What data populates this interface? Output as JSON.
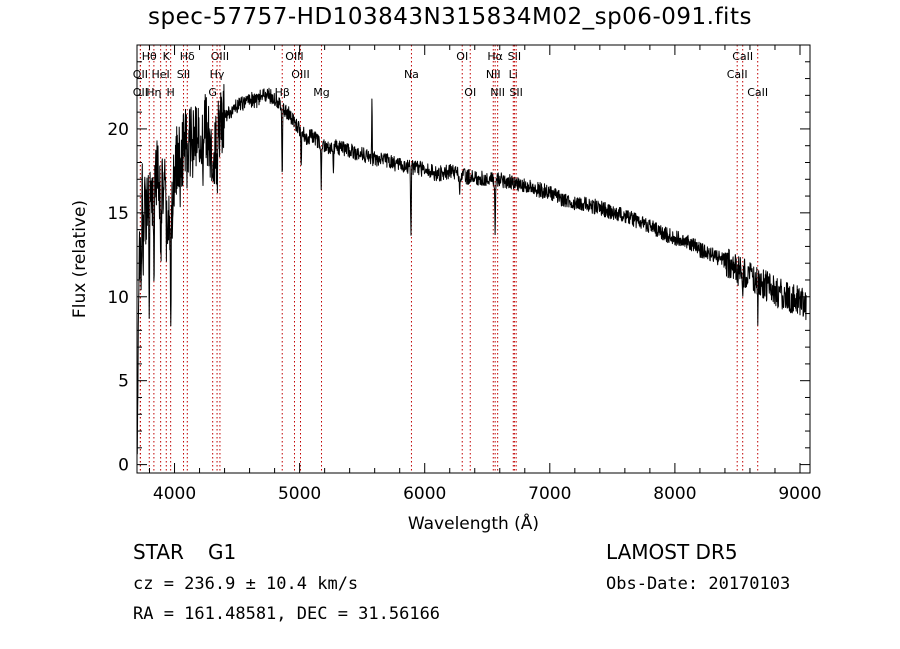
{
  "title": "spec-57757-HD103843N315834M02_sp06-091.fits",
  "info": {
    "object_class": "STAR",
    "subclass": "G1",
    "cz": "cz = 236.9 ± 10.4 km/s",
    "coords": "RA = 161.48581, DEC =  31.56166",
    "survey": "LAMOST DR5",
    "obs_date": "Obs-Date: 20170103"
  },
  "chart_data": {
    "type": "line",
    "xlabel": "Wavelength (Å)",
    "ylabel": "Flux (relative)",
    "xlim": [
      3700,
      9080
    ],
    "ylim": [
      -0.5,
      25
    ],
    "x_ticks": [
      4000,
      5000,
      6000,
      7000,
      8000,
      9000
    ],
    "y_ticks": [
      0,
      5,
      10,
      15,
      20
    ],
    "colors": {
      "spectrum": "#000000",
      "line_markers": "#c00000"
    },
    "spectrum_anchors": [
      [
        3700,
        0.3
      ],
      [
        3712,
        8
      ],
      [
        3725,
        14.5
      ],
      [
        3745,
        16.5
      ],
      [
        3770,
        15
      ],
      [
        3800,
        17.2
      ],
      [
        3830,
        15.5
      ],
      [
        3860,
        18
      ],
      [
        3890,
        16
      ],
      [
        3920,
        16.5
      ],
      [
        3950,
        14
      ],
      [
        3980,
        15
      ],
      [
        4010,
        18
      ],
      [
        4050,
        18.5
      ],
      [
        4100,
        19.5
      ],
      [
        4150,
        19
      ],
      [
        4200,
        19.8
      ],
      [
        4250,
        20
      ],
      [
        4300,
        18.5
      ],
      [
        4350,
        19.5
      ],
      [
        4400,
        20.8
      ],
      [
        4450,
        21
      ],
      [
        4500,
        21.4
      ],
      [
        4550,
        21.5
      ],
      [
        4600,
        21.8
      ],
      [
        4650,
        21.6
      ],
      [
        4700,
        22
      ],
      [
        4750,
        22
      ],
      [
        4800,
        21.8
      ],
      [
        4850,
        21.5
      ],
      [
        4900,
        21
      ],
      [
        4950,
        20.5
      ],
      [
        5000,
        20
      ],
      [
        5050,
        19.5
      ],
      [
        5100,
        19.6
      ],
      [
        5150,
        19.2
      ],
      [
        5200,
        19
      ],
      [
        5300,
        18.9
      ],
      [
        5400,
        18.7
      ],
      [
        5500,
        18.5
      ],
      [
        5600,
        18.2
      ],
      [
        5700,
        18.1
      ],
      [
        5800,
        17.8
      ],
      [
        5900,
        17.7
      ],
      [
        6000,
        17.6
      ],
      [
        6100,
        17.3
      ],
      [
        6200,
        17.5
      ],
      [
        6300,
        17.2
      ],
      [
        6400,
        17.1
      ],
      [
        6500,
        17
      ],
      [
        6600,
        17
      ],
      [
        6700,
        16.8
      ],
      [
        6800,
        16.6
      ],
      [
        6900,
        16.4
      ],
      [
        7000,
        16.2
      ],
      [
        7100,
        15.8
      ],
      [
        7200,
        15.6
      ],
      [
        7300,
        15.5
      ],
      [
        7400,
        15.3
      ],
      [
        7500,
        15
      ],
      [
        7600,
        14.8
      ],
      [
        7700,
        14.5
      ],
      [
        7800,
        14.2
      ],
      [
        7900,
        13.8
      ],
      [
        8000,
        13.5
      ],
      [
        8100,
        13.3
      ],
      [
        8200,
        12.8
      ],
      [
        8300,
        12.5
      ],
      [
        8400,
        12.1
      ],
      [
        8500,
        11.6
      ],
      [
        8600,
        11.2
      ],
      [
        8700,
        10.8
      ],
      [
        8800,
        10.3
      ],
      [
        8900,
        10
      ],
      [
        9000,
        9.8
      ],
      [
        9050,
        9.5
      ]
    ],
    "absorption_features": [
      [
        3734,
        6.0
      ],
      [
        3750,
        4.5
      ],
      [
        3798,
        6.5
      ],
      [
        3835,
        5.8
      ],
      [
        3889,
        4.0
      ],
      [
        3934,
        2.5
      ],
      [
        3970,
        4.8
      ],
      [
        4046,
        2.0
      ],
      [
        4102,
        2.5
      ],
      [
        4226,
        1.8
      ],
      [
        4300,
        3.0
      ],
      [
        4340,
        3.8
      ],
      [
        4383,
        2.0
      ],
      [
        4861,
        4.5
      ],
      [
        5012,
        2.0
      ],
      [
        5173,
        2.5
      ],
      [
        5270,
        1.2
      ],
      [
        5890,
        4.0
      ],
      [
        6563,
        3.5
      ],
      [
        6280,
        1.0
      ],
      [
        8498,
        1.5
      ],
      [
        8542,
        2.0
      ],
      [
        8662,
        2.0
      ],
      [
        8700,
        1.2
      ]
    ],
    "emission_features": [
      [
        5578,
        3.5
      ]
    ],
    "line_markers": [
      {
        "label": "Hθ",
        "wavelength": 3798,
        "row": 0
      },
      {
        "label": "OII",
        "wavelength": 3727,
        "row": 1
      },
      {
        "label": "OII",
        "wavelength": 3727,
        "row": 2
      },
      {
        "label": "K",
        "wavelength": 3934,
        "row": 0
      },
      {
        "label": "HeI",
        "wavelength": 3889,
        "row": 1
      },
      {
        "label": "Hη",
        "wavelength": 3835,
        "row": 2
      },
      {
        "label": "H",
        "wavelength": 3969,
        "row": 2
      },
      {
        "label": "Hδ",
        "wavelength": 4102,
        "row": 0
      },
      {
        "label": "SII",
        "wavelength": 4072,
        "row": 1
      },
      {
        "label": "OIII",
        "wavelength": 4363,
        "row": 0
      },
      {
        "label": "Hγ",
        "wavelength": 4340,
        "row": 1
      },
      {
        "label": "G",
        "wavelength": 4305,
        "row": 2
      },
      {
        "label": "OIII",
        "wavelength": 4959,
        "row": 0
      },
      {
        "label": "OIII",
        "wavelength": 5007,
        "row": 1
      },
      {
        "label": "Hβ",
        "wavelength": 4861,
        "row": 2
      },
      {
        "label": "Mg",
        "wavelength": 5175,
        "row": 2
      },
      {
        "label": "Na",
        "wavelength": 5894,
        "row": 1
      },
      {
        "label": "OI",
        "wavelength": 6300,
        "row": 0
      },
      {
        "label": "OI",
        "wavelength": 6364,
        "row": 2
      },
      {
        "label": "Hα",
        "wavelength": 6563,
        "row": 0
      },
      {
        "label": "NII",
        "wavelength": 6548,
        "row": 1
      },
      {
        "label": "NII",
        "wavelength": 6583,
        "row": 2
      },
      {
        "label": "SII",
        "wavelength": 6717,
        "row": 0
      },
      {
        "label": "Li",
        "wavelength": 6708,
        "row": 1
      },
      {
        "label": "SII",
        "wavelength": 6731,
        "row": 2
      },
      {
        "label": "CaII",
        "wavelength": 8542,
        "row": 0
      },
      {
        "label": "CaII",
        "wavelength": 8498,
        "row": 1
      },
      {
        "label": "CaII",
        "wavelength": 8662,
        "row": 2
      }
    ]
  }
}
